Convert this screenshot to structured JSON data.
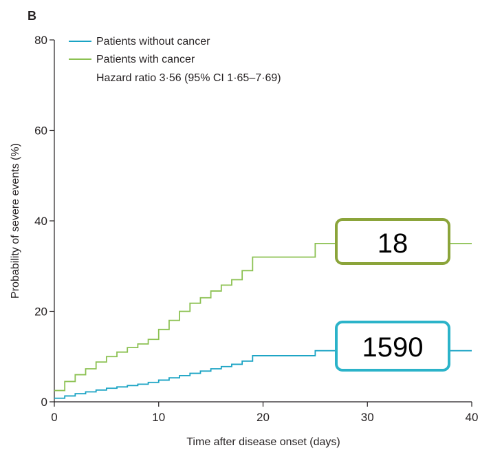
{
  "panel_label": "B",
  "chart_data": {
    "type": "line",
    "step": true,
    "xlabel": "Time after disease onset (days)",
    "ylabel": "Probability of severe events (%)",
    "xlim": [
      0,
      40
    ],
    "ylim": [
      0,
      80
    ],
    "x_ticks": [
      0,
      10,
      20,
      30,
      40
    ],
    "y_ticks": [
      0,
      20,
      40,
      60,
      80
    ],
    "grid": false,
    "legend_position": "top-left",
    "legend_note": "Hazard ratio 3·56 (95% CI 1·65–7·69)",
    "series": [
      {
        "name": "Patients without cancer",
        "color": "#1aa3c4",
        "x": [
          0,
          1,
          2,
          3,
          4,
          5,
          6,
          7,
          8,
          9,
          10,
          11,
          12,
          13,
          14,
          15,
          16,
          17,
          18,
          19,
          25,
          40
        ],
        "y": [
          0.8,
          1.3,
          1.8,
          2.2,
          2.6,
          3.0,
          3.3,
          3.6,
          3.9,
          4.3,
          4.8,
          5.3,
          5.8,
          6.3,
          6.8,
          7.3,
          7.8,
          8.3,
          9.0,
          10.2,
          11.3,
          11.3
        ]
      },
      {
        "name": "Patients with cancer",
        "color": "#8cc152",
        "x": [
          0,
          1,
          2,
          3,
          4,
          5,
          6,
          7,
          8,
          9,
          10,
          11,
          12,
          13,
          14,
          15,
          16,
          17,
          18,
          19,
          25,
          40
        ],
        "y": [
          2.5,
          4.5,
          6.0,
          7.3,
          8.8,
          10.0,
          11.0,
          12.0,
          12.8,
          13.8,
          16.0,
          18.0,
          20.0,
          21.8,
          23.0,
          24.5,
          25.8,
          27.0,
          29.0,
          32.0,
          35.0,
          35.0
        ]
      }
    ],
    "annotations": [
      {
        "text": "18",
        "series": "Patients with cancer",
        "border_color": "#8ba43a"
      },
      {
        "text": "1590",
        "series": "Patients without cancer",
        "border_color": "#2bb3c9"
      }
    ]
  }
}
